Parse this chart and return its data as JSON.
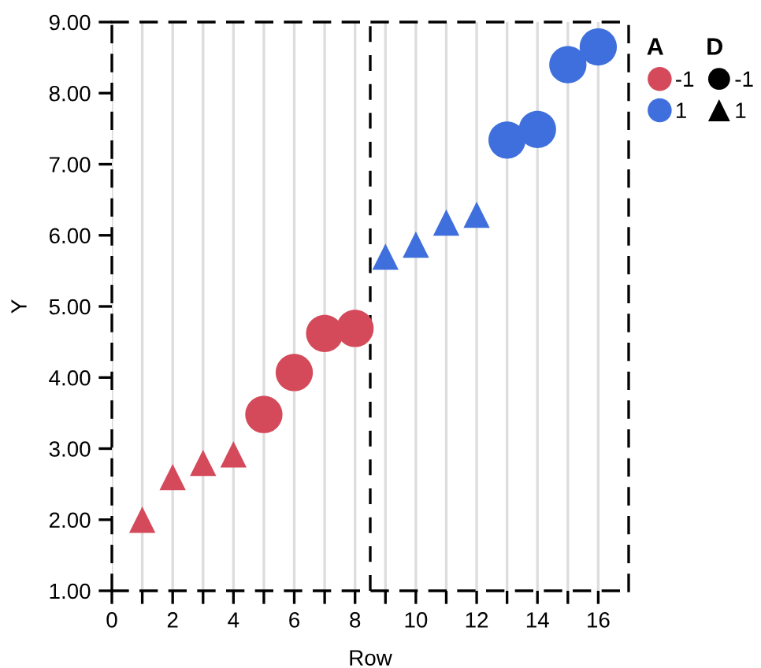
{
  "chart_data": {
    "type": "scatter",
    "xlabel": "Row",
    "ylabel": "Y",
    "legend_title": "A",
    "annotations": [
      "D"
    ],
    "xlim": [
      0,
      17
    ],
    "ylim": [
      1,
      9
    ],
    "xticks": [
      0,
      {
        "value": 1,
        "label": null
      },
      2,
      {
        "value": 3,
        "label": null
      },
      4,
      {
        "value": 5,
        "label": null
      },
      6,
      {
        "value": 7,
        "label": null
      },
      8,
      {
        "value": 9,
        "label": null
      },
      10,
      {
        "value": 11,
        "label": null
      },
      12,
      {
        "value": 13,
        "label": null
      },
      14,
      {
        "value": 15,
        "label": null
      },
      16
    ],
    "yticks": [
      {
        "value": 1,
        "label": "1.00"
      },
      {
        "value": 2,
        "label": "2.00"
      },
      {
        "value": 3,
        "label": "3.00"
      },
      {
        "value": 4,
        "label": "4.00"
      },
      {
        "value": 5,
        "label": "5.00"
      },
      {
        "value": 6,
        "label": "6.00"
      },
      {
        "value": 7,
        "label": "7.00"
      },
      {
        "value": 8,
        "label": "8.00"
      },
      {
        "value": 9,
        "label": "9.00"
      }
    ],
    "grid": "x",
    "legend": "top right",
    "ref_lines": [
      {
        "axis": "x",
        "value": 8.5,
        "label": null,
        "color": "#000000",
        "line_style": "dashed"
      }
    ],
    "series": [
      {
        "color": "#d44a5a",
        "marker": "triangle",
        "x": [
          1,
          2,
          3,
          4
        ],
        "values": [
          2.0,
          2.6,
          2.8,
          2.92
        ]
      },
      {
        "name": "-1",
        "color": "#d44a5a",
        "marker": "circle",
        "x": [
          5,
          6,
          7,
          8
        ],
        "values": [
          3.48,
          4.07,
          4.62,
          4.69
        ]
      },
      {
        "name": "1",
        "color": "#3f6fdc",
        "marker": "triangle",
        "x": [
          9,
          10,
          11,
          12
        ],
        "values": [
          5.7,
          5.87,
          6.18,
          6.29
        ]
      },
      {
        "color": "#3f6fdc",
        "marker": "circle",
        "x": [
          13,
          14,
          15,
          16
        ],
        "values": [
          7.34,
          7.49,
          8.4,
          8.65
        ]
      }
    ]
  }
}
